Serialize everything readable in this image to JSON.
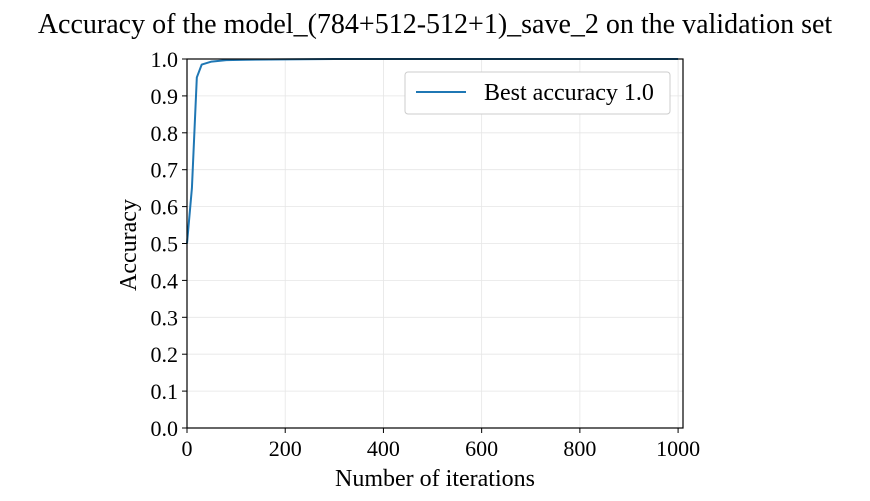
{
  "chart_data": {
    "type": "line",
    "title": "Accuracy of the model_(784+512-512+1)_save_2 on the validation set",
    "xlabel": "Number of iterations",
    "ylabel": "Accuracy",
    "xlim": [
      0,
      1010
    ],
    "ylim": [
      0.0,
      1.0
    ],
    "xticks": [
      0,
      200,
      400,
      600,
      800,
      1000
    ],
    "xtick_labels": [
      "0",
      "200",
      "400",
      "600",
      "800",
      "1000"
    ],
    "yticks": [
      0.0,
      0.1,
      0.2,
      0.3,
      0.4,
      0.5,
      0.6,
      0.7,
      0.8,
      0.9,
      1.0
    ],
    "ytick_labels": [
      "0.0",
      "0.1",
      "0.2",
      "0.3",
      "0.4",
      "0.5",
      "0.6",
      "0.7",
      "0.8",
      "0.9",
      "1.0"
    ],
    "grid": true,
    "legend_position": "top-right",
    "series": [
      {
        "name": "Best accuracy 1.0",
        "color": "#1f77b4",
        "x": [
          0,
          10,
          20,
          30,
          50,
          80,
          120,
          200,
          300,
          400,
          500,
          600,
          700,
          800,
          900,
          1000
        ],
        "y": [
          0.5,
          0.65,
          0.95,
          0.985,
          0.993,
          0.997,
          0.998,
          0.999,
          1.0,
          1.0,
          1.0,
          1.0,
          1.0,
          1.0,
          1.0,
          1.0
        ]
      }
    ]
  }
}
